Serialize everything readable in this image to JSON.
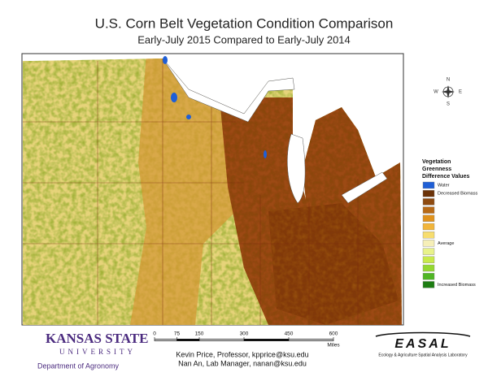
{
  "header": {
    "title": "U.S. Corn Belt Vegetation Condition Comparison",
    "subtitle": "Early-July 2015 Compared to Early-July 2014"
  },
  "compass": {
    "n": "N",
    "s": "S",
    "e": "E",
    "w": "W"
  },
  "legend": {
    "title": [
      "Vegetation",
      "Greenness",
      "Difference Values"
    ],
    "items": [
      {
        "color": "#1f5fd6",
        "label": "Water"
      },
      {
        "color": "#6b3208",
        "label": "Decreased Biomass"
      },
      {
        "color": "#8e4a10"
      },
      {
        "color": "#b86a16"
      },
      {
        "color": "#e0921c"
      },
      {
        "color": "#f2b53a"
      },
      {
        "color": "#f7dd6e"
      },
      {
        "color": "#f6efb8",
        "label": "Average"
      },
      {
        "color": "#e8f28a"
      },
      {
        "color": "#c8ea4a"
      },
      {
        "color": "#94d830"
      },
      {
        "color": "#4fb624"
      },
      {
        "color": "#1d7d12",
        "label": "Increased Biomass"
      }
    ]
  },
  "scale": {
    "ticks": [
      0,
      75,
      150,
      300,
      450,
      600
    ],
    "unit": "Miles"
  },
  "credits": [
    "Kevin Price, Professor, kpprice@ksu.edu",
    "Nan An, Lab Manager, nanan@ksu.edu"
  ],
  "logos": {
    "ksu_top": "KANSAS STATE",
    "ksu_bottom": "UNIVERSITY",
    "department": "Department of Agronomy",
    "easal": "EASAL",
    "easal_full": "Ecology & Agriculture Spatial Analysis Laboratory"
  }
}
